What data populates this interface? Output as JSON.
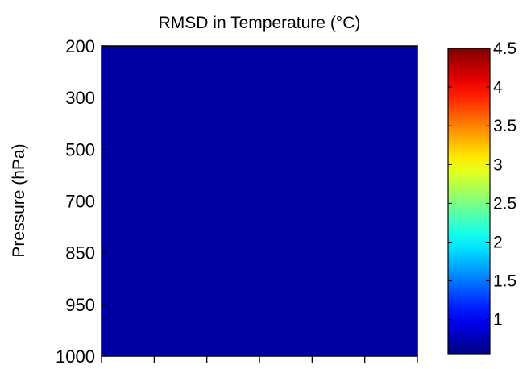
{
  "chart_data": {
    "type": "contour",
    "title": "RMSD in Temperature (°C)",
    "xlabel": "",
    "ylabel": "Pressure (hPa)",
    "x_tick_count": 7,
    "y_ticks": [
      "200",
      "300",
      "500",
      "700",
      "850",
      "950",
      "1000"
    ],
    "colorbar": {
      "colormap": "jet",
      "range": [
        0.55,
        4.5
      ],
      "ticks": [
        "1",
        "1.5",
        "2",
        "2.5",
        "3",
        "3.5",
        "4",
        "4.5"
      ],
      "tick_values": [
        1,
        1.5,
        2,
        2.5,
        3,
        3.5,
        4,
        4.5
      ]
    },
    "contour_levels": [
      0.8,
      1.3,
      1.8,
      2.2,
      2.6,
      3.0,
      3.4,
      3.8,
      4.2
    ],
    "grid_columns": 7,
    "grid": "off",
    "legend": "colorbar-right"
  }
}
